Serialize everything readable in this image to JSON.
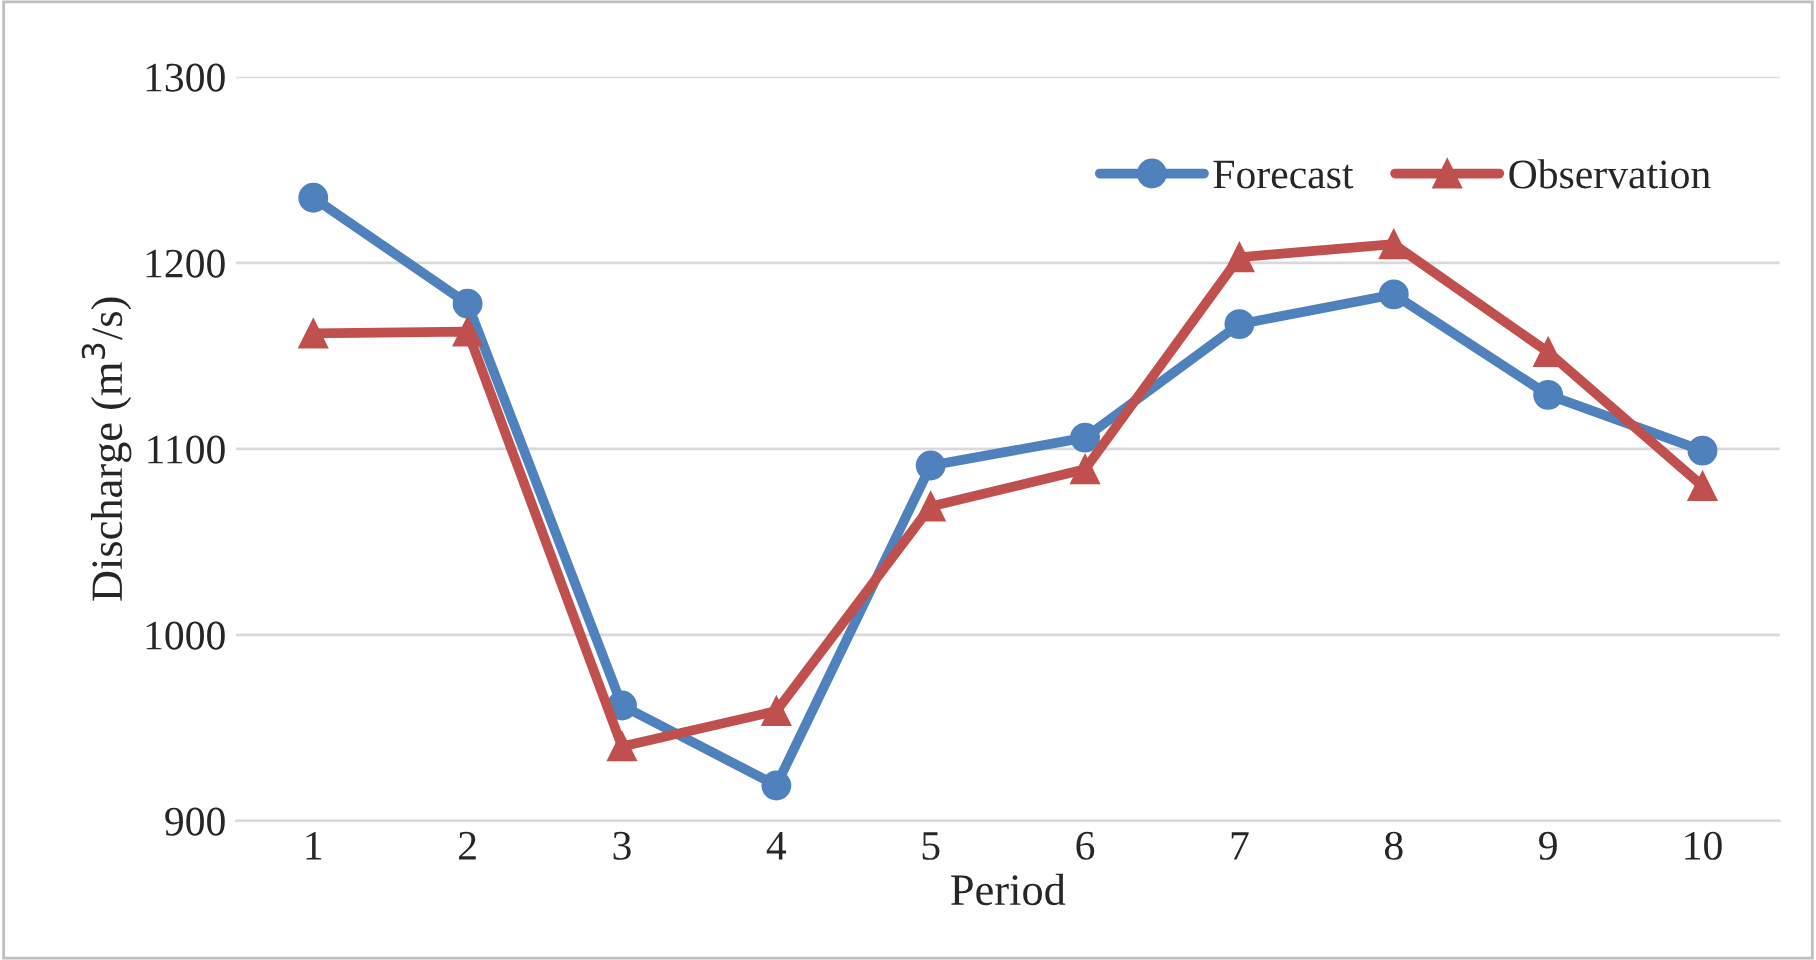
{
  "chart_data": {
    "type": "line",
    "xlabel": "Period",
    "ylabel": "Discharge (m$^{3}$/s)",
    "categories": [
      "1",
      "2",
      "3",
      "4",
      "5",
      "6",
      "7",
      "8",
      "9",
      "10"
    ],
    "series": [
      {
        "name": "Forecast",
        "color": "#4f81bd",
        "marker": "circle",
        "values": [
          1235,
          1178,
          962,
          919,
          1091,
          1106,
          1167,
          1183,
          1129,
          1099
        ]
      },
      {
        "name": "Observation",
        "color": "#c0504d",
        "marker": "triangle",
        "values": [
          1162,
          1163,
          940,
          959,
          1069,
          1089,
          1203,
          1210,
          1152,
          1080
        ]
      }
    ],
    "ylim": [
      900,
      1300
    ],
    "yticks": [
      900,
      1000,
      1100,
      1200,
      1300
    ],
    "grid": "y",
    "legend": "top right",
    "line_style": "solid"
  }
}
